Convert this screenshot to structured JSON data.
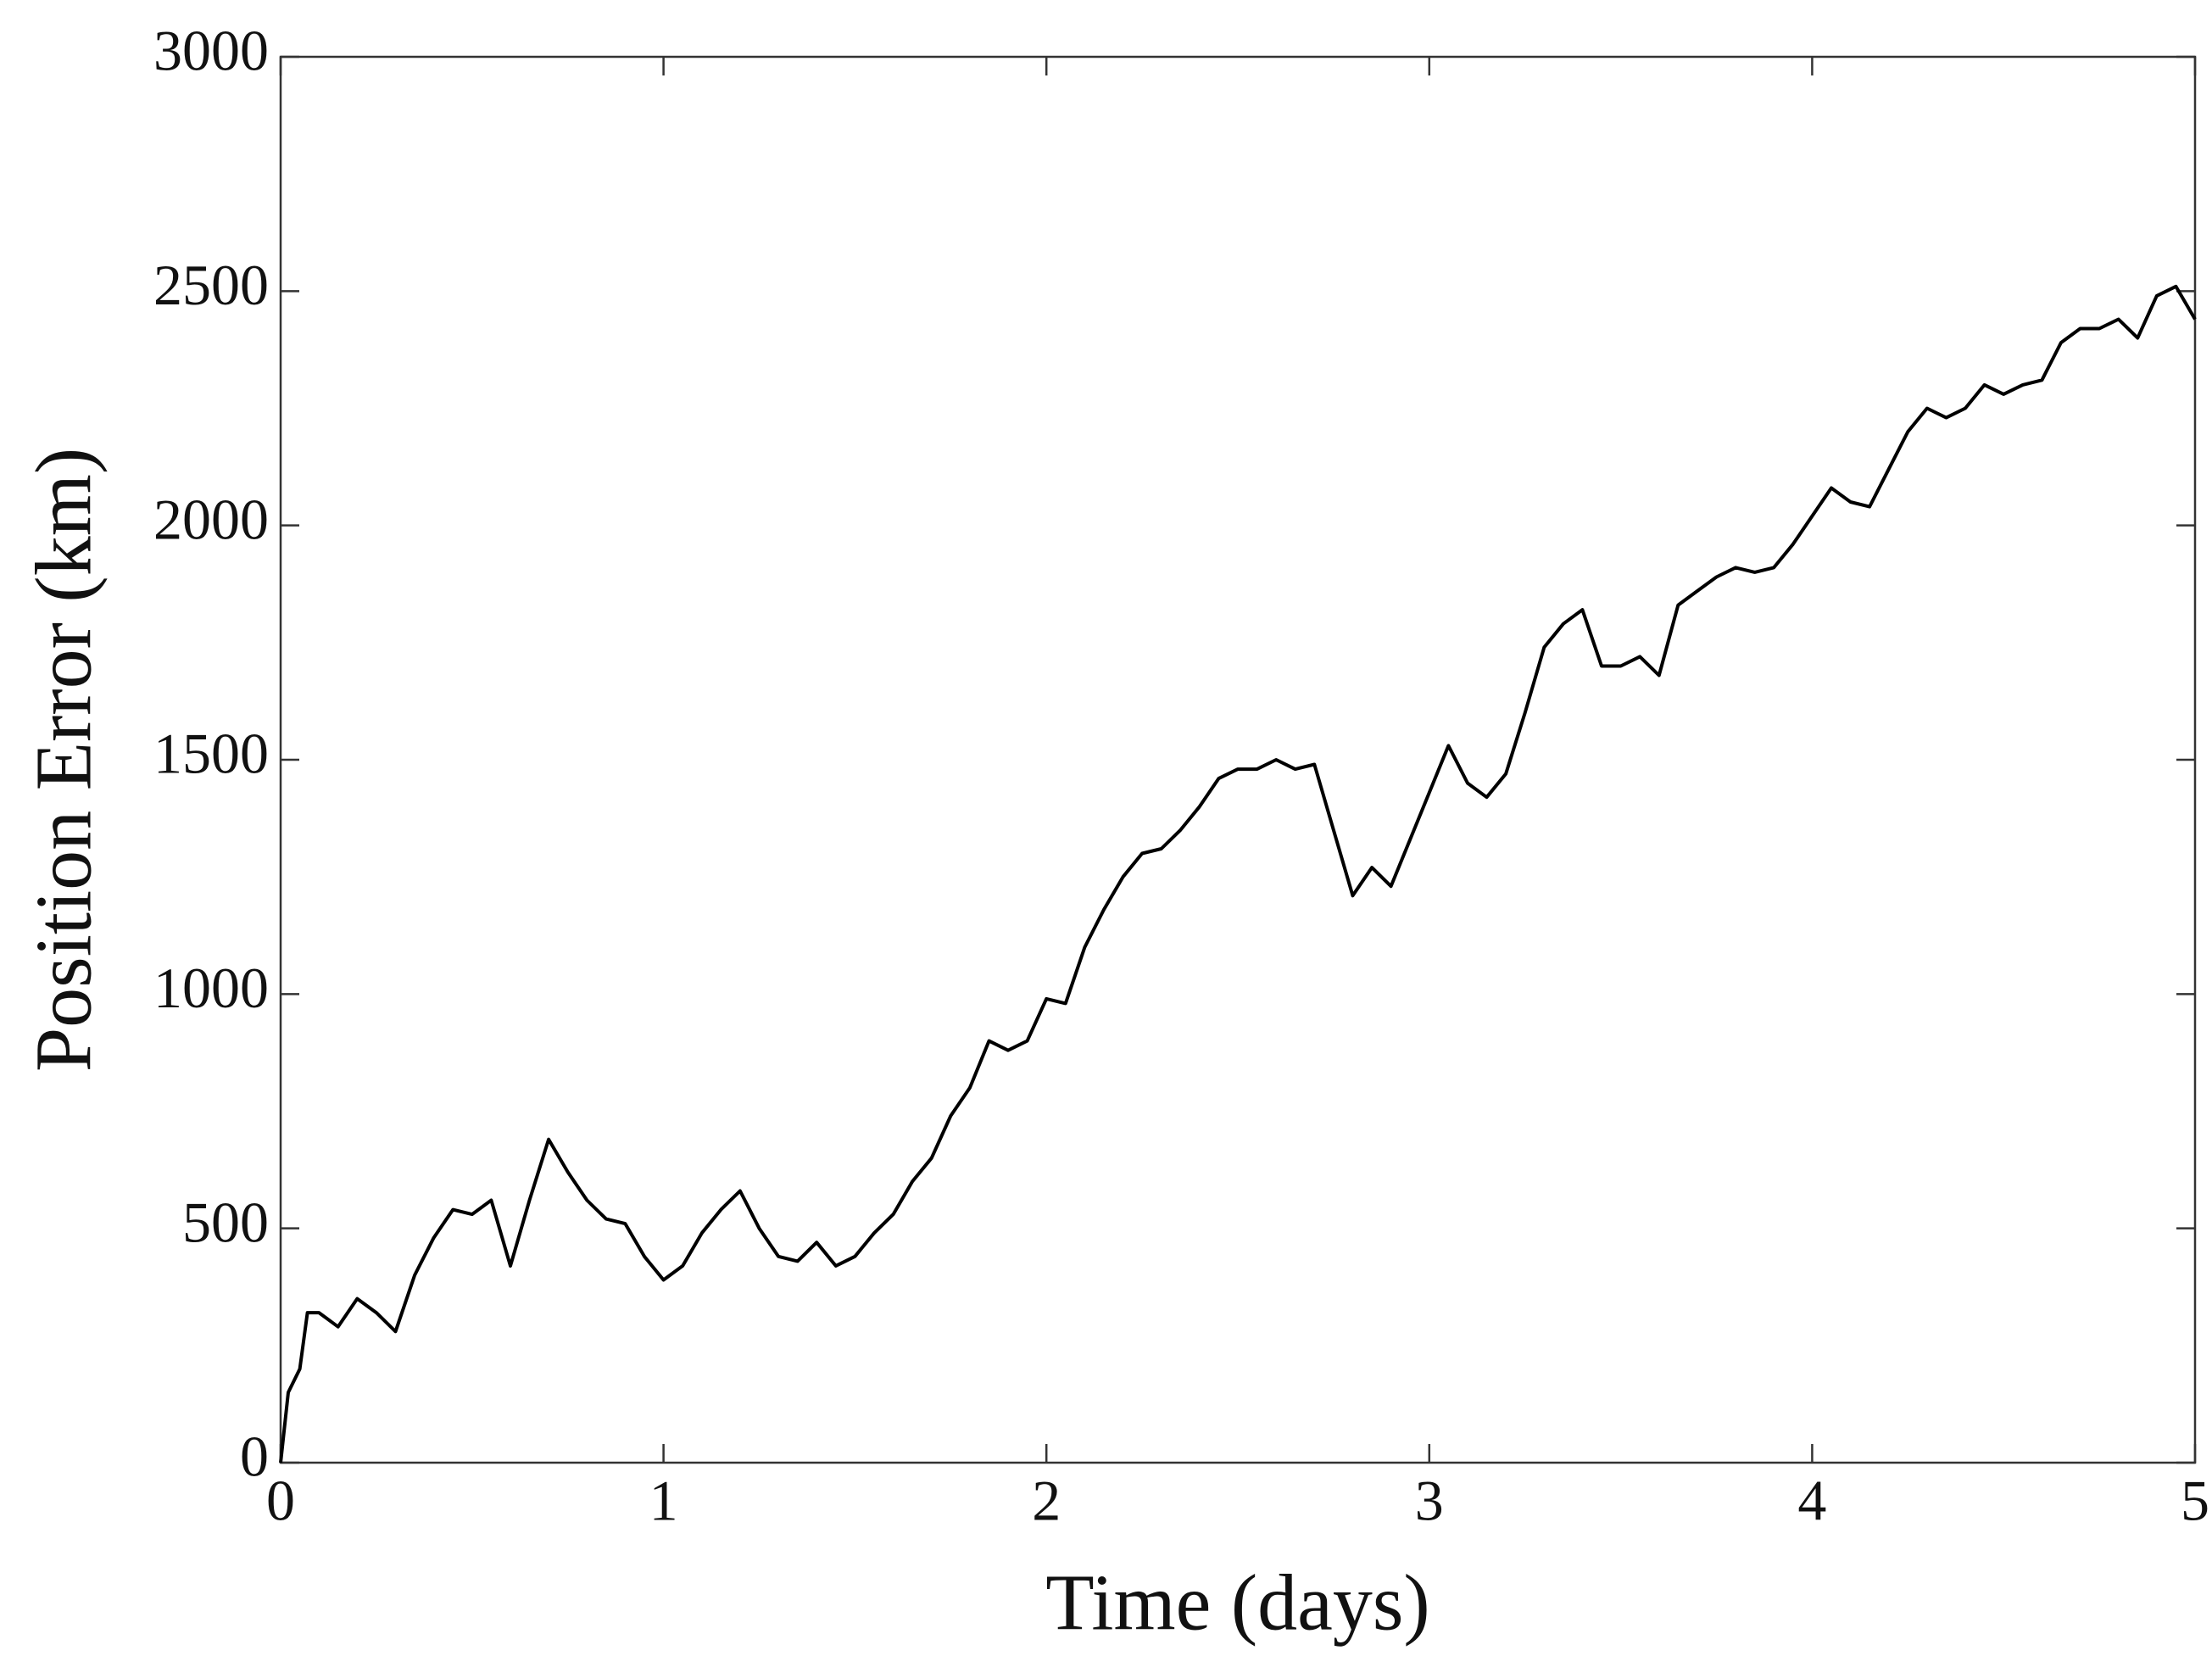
{
  "chart_data": {
    "type": "line",
    "xlabel": "Time (days)",
    "ylabel": "Position Error (km)",
    "x": [
      0,
      0.02,
      0.05,
      0.07,
      0.1,
      0.15,
      0.2,
      0.25,
      0.3,
      0.35,
      0.4,
      0.45,
      0.5,
      0.55,
      0.6,
      0.65,
      0.7,
      0.75,
      0.8,
      0.85,
      0.9,
      0.95,
      1.0,
      1.05,
      1.1,
      1.15,
      1.2,
      1.25,
      1.3,
      1.35,
      1.4,
      1.45,
      1.5,
      1.55,
      1.6,
      1.65,
      1.7,
      1.75,
      1.8,
      1.85,
      1.9,
      1.95,
      2.0,
      2.05,
      2.1,
      2.15,
      2.2,
      2.25,
      2.3,
      2.35,
      2.4,
      2.45,
      2.5,
      2.55,
      2.6,
      2.65,
      2.7,
      2.75,
      2.8,
      2.85,
      2.9,
      2.95,
      3.0,
      3.05,
      3.1,
      3.15,
      3.2,
      3.25,
      3.3,
      3.35,
      3.4,
      3.45,
      3.5,
      3.55,
      3.6,
      3.65,
      3.7,
      3.75,
      3.8,
      3.85,
      3.9,
      3.95,
      4.0,
      4.05,
      4.1,
      4.15,
      4.2,
      4.25,
      4.3,
      4.35,
      4.4,
      4.45,
      4.5,
      4.55,
      4.6,
      4.65,
      4.7,
      4.75,
      4.8,
      4.85,
      4.9,
      4.95,
      5.0
    ],
    "series": [
      {
        "name": "Position Error",
        "color": "#000000",
        "values": [
          0,
          150,
          200,
          320,
          320,
          290,
          350,
          320,
          280,
          400,
          480,
          540,
          530,
          560,
          420,
          560,
          690,
          620,
          560,
          520,
          510,
          440,
          390,
          420,
          490,
          540,
          580,
          500,
          440,
          430,
          470,
          420,
          440,
          490,
          530,
          600,
          650,
          740,
          800,
          900,
          880,
          900,
          990,
          980,
          1100,
          1180,
          1250,
          1300,
          1310,
          1350,
          1400,
          1460,
          1480,
          1480,
          1500,
          1480,
          1490,
          1350,
          1210,
          1270,
          1230,
          1330,
          1430,
          1530,
          1450,
          1420,
          1470,
          1600,
          1740,
          1790,
          1820,
          1700,
          1700,
          1720,
          1680,
          1830,
          1860,
          1890,
          1910,
          1900,
          1910,
          1960,
          2020,
          2080,
          2050,
          2040,
          2120,
          2200,
          2250,
          2230,
          2250,
          2300,
          2280,
          2300,
          2310,
          2390,
          2420,
          2420,
          2440,
          2400,
          2490,
          2510,
          2440
        ]
      }
    ],
    "xlim": [
      0,
      5
    ],
    "xticks": [
      0,
      1,
      2,
      3,
      4,
      5
    ],
    "ylim": [
      0,
      3000
    ],
    "yticks": [
      0,
      500,
      1000,
      1500,
      2000,
      2500,
      3000
    ]
  }
}
